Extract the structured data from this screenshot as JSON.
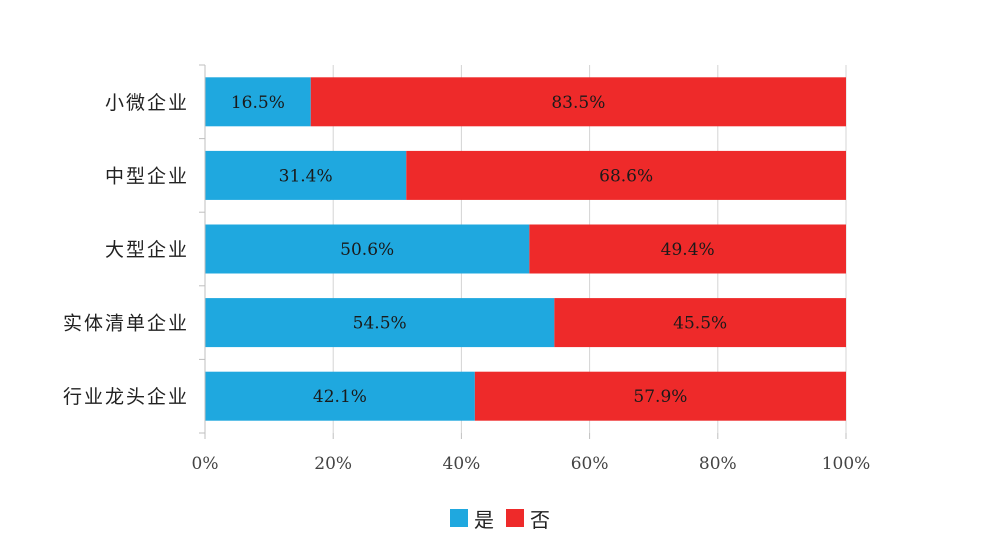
{
  "chart_data": {
    "type": "bar",
    "orientation": "horizontal",
    "stacked": "percent",
    "title": "",
    "xlabel": "",
    "ylabel": "",
    "categories": [
      "小微企业",
      "中型企业",
      "大型企业",
      "实体清单企业",
      "行业龙头企业"
    ],
    "series": [
      {
        "name": "是",
        "color": "#1FA8DF",
        "values": [
          16.5,
          31.4,
          50.6,
          54.5,
          42.1
        ],
        "labels": [
          "16.5%",
          "31.4%",
          "50.6%",
          "54.5%",
          "42.1%"
        ]
      },
      {
        "name": "否",
        "color": "#EE2A2A",
        "values": [
          83.5,
          68.6,
          49.4,
          45.5,
          57.9
        ],
        "labels": [
          "83.5%",
          "68.6%",
          "49.4%",
          "45.5%",
          "57.9%"
        ]
      }
    ],
    "xlim": [
      0,
      100
    ],
    "xticks": [
      "0%",
      "20%",
      "40%",
      "60%",
      "80%",
      "100%"
    ],
    "grid": true,
    "legend_position": "bottom"
  }
}
